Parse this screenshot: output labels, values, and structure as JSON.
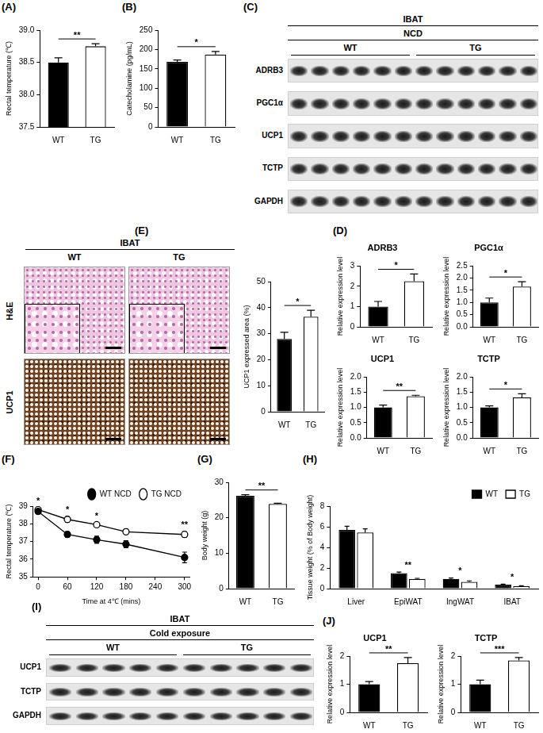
{
  "chart_data": [
    {
      "panel_label": "(A)",
      "type": "bar",
      "categories": [
        "WT",
        "TG"
      ],
      "values": [
        38.5,
        38.75
      ],
      "errors": [
        0.07,
        0.04
      ],
      "colors": [
        "#000000",
        "#ffffff"
      ],
      "y_label": "Rectal temperature (℃)",
      "ylim": [
        37.5,
        39.0
      ],
      "yticks": [
        37.5,
        {
          "value": 38,
          "label": "38.0"
        },
        38.5,
        {
          "value": 39,
          "label": "39.0"
        }
      ],
      "significance": "**",
      "grid": false
    },
    {
      "panel_label": "(B)",
      "type": "bar",
      "categories": [
        "WT",
        "TG"
      ],
      "values": [
        168,
        187
      ],
      "errors": [
        5,
        8
      ],
      "colors": [
        "#000000",
        "#ffffff"
      ],
      "y_label": "Catecholamine (pg/mL)",
      "ylim": [
        0,
        250
      ],
      "yticks": [
        0,
        50,
        100,
        150,
        200,
        250
      ],
      "significance": "*",
      "grid": false
    },
    {
      "panel_label": "(D)",
      "type": "bar",
      "title": "ADRB3",
      "categories": [
        "WT",
        "TG"
      ],
      "values": [
        1.0,
        2.25
      ],
      "errors": [
        0.25,
        0.35
      ],
      "colors": [
        "#000000",
        "#ffffff"
      ],
      "y_label": "Relative expression level",
      "ylim": [
        0,
        3
      ],
      "yticks": [
        0,
        1,
        2,
        3
      ],
      "significance": "*",
      "grid": false
    },
    {
      "type": "bar",
      "title": "PGC1α",
      "categories": [
        "WT",
        "TG"
      ],
      "values": [
        1.0,
        1.65
      ],
      "errors": [
        0.18,
        0.2
      ],
      "colors": [
        "#000000",
        "#ffffff"
      ],
      "y_label": "Relative expression level",
      "ylim": [
        0,
        2.5
      ],
      "yticks": [
        {
          "value": 0,
          "label": "0.0"
        },
        0.5,
        {
          "value": 1,
          "label": "1.0"
        },
        1.5,
        {
          "value": 2,
          "label": "2.0"
        },
        2.5
      ],
      "significance": "*",
      "grid": false
    },
    {
      "type": "bar",
      "title": "UCP1",
      "categories": [
        "WT",
        "TG"
      ],
      "values": [
        1.0,
        1.37
      ],
      "errors": [
        0.08,
        0.03
      ],
      "colors": [
        "#000000",
        "#ffffff"
      ],
      "y_label": "Relative expression level",
      "ylim": [
        0,
        2.0
      ],
      "yticks": [
        {
          "value": 0,
          "label": "0.0"
        },
        0.5,
        {
          "value": 1,
          "label": "1.0"
        },
        1.5,
        {
          "value": 2,
          "label": "2.0"
        }
      ],
      "significance": "**",
      "grid": false
    },
    {
      "type": "bar",
      "title": "TCTP",
      "categories": [
        "WT",
        "TG"
      ],
      "values": [
        1.0,
        1.33
      ],
      "errors": [
        0.05,
        0.12
      ],
      "colors": [
        "#000000",
        "#ffffff"
      ],
      "y_label": "Relative expression level",
      "ylim": [
        0,
        2.0
      ],
      "yticks": [
        {
          "value": 0,
          "label": "0.0"
        },
        0.5,
        {
          "value": 1,
          "label": "1.0"
        },
        1.5,
        {
          "value": 2,
          "label": "2.0"
        }
      ],
      "significance": "*",
      "grid": false
    },
    {
      "type": "bar",
      "categories": [
        "WT",
        "TG"
      ],
      "values": [
        28,
        36.5
      ],
      "errors": [
        2.5,
        2.5
      ],
      "colors": [
        "#000000",
        "#ffffff"
      ],
      "y_label": "UCP1 expressed area (%)",
      "ylim": [
        0,
        50
      ],
      "yticks": [
        0,
        10,
        20,
        30,
        40,
        50
      ],
      "significance": "*",
      "grid": false
    },
    {
      "panel_label": "(F)",
      "type": "line",
      "x": [
        0,
        60,
        120,
        180,
        300
      ],
      "series": [
        {
          "name": "WT NCD",
          "color": "#000000",
          "marker": "filled_circle",
          "values": [
            38.7,
            37.4,
            37.1,
            36.85,
            36.1
          ],
          "errors": [
            0.1,
            0.15,
            0.2,
            0.2,
            0.3
          ]
        },
        {
          "name": "TG NCD",
          "color": "#000000",
          "marker": "open_circle",
          "values": [
            38.8,
            38.25,
            37.95,
            37.55,
            37.4
          ],
          "errors": [
            0.1,
            0.15,
            0.1,
            0.15,
            0.15
          ]
        }
      ],
      "x_label": "Time at 4℃ (mins)",
      "y_label": "Rectal temperature (℃)",
      "xlim": [
        -10,
        310
      ],
      "xticks": [
        0,
        60,
        120,
        180,
        240,
        300
      ],
      "ylim": [
        35,
        39
      ],
      "yticks": [
        35,
        36,
        37,
        38,
        39
      ],
      "annotations": [
        "*",
        "*",
        "*",
        null,
        "**"
      ],
      "legend": "top-right",
      "grid": false
    },
    {
      "panel_label": "(G)",
      "type": "bar",
      "categories": [
        "WT",
        "TG"
      ],
      "values": [
        26.2,
        23.9
      ],
      "errors": [
        0.3,
        0.2
      ],
      "colors": [
        "#000000",
        "#ffffff"
      ],
      "y_label": "Body weight (g)",
      "ylim": [
        0,
        30
      ],
      "yticks": [
        0,
        10,
        20,
        30
      ],
      "significance": "**",
      "grid": false
    },
    {
      "panel_label": "(H)",
      "type": "bar",
      "categories": [
        "Liver",
        "EpiWAT",
        "IngWAT",
        "IBAT"
      ],
      "series": [
        {
          "name": "WT",
          "color": "#000000",
          "values": [
            5.7,
            1.5,
            0.95,
            0.38
          ],
          "errors": [
            0.35,
            0.1,
            0.08,
            0.05
          ]
        },
        {
          "name": "TG",
          "color": "#ffffff",
          "values": [
            5.45,
            0.95,
            0.65,
            0.25
          ],
          "errors": [
            0.35,
            0.05,
            0.1,
            0.03
          ]
        }
      ],
      "y_label": "Tissue weight (% of Body weight)",
      "ylim": [
        0,
        8
      ],
      "yticks": [
        0,
        2,
        4,
        6,
        8
      ],
      "annotations": [
        null,
        "**",
        "*",
        "*"
      ],
      "legend": "top-right",
      "grid": false
    },
    {
      "panel_label": "(J)",
      "type": "bar",
      "title": "UCP1",
      "categories": [
        "WT",
        "TG"
      ],
      "values": [
        1.0,
        1.75
      ],
      "errors": [
        0.1,
        0.2
      ],
      "colors": [
        "#000000",
        "#ffffff"
      ],
      "y_label": "Relative expression level",
      "ylim": [
        0,
        2
      ],
      "yticks": [
        0,
        1,
        2
      ],
      "significance": "**",
      "grid": false
    },
    {
      "type": "bar",
      "title": "TCTP",
      "categories": [
        "WT",
        "TG"
      ],
      "values": [
        1.0,
        1.85
      ],
      "errors": [
        0.15,
        0.1
      ],
      "colors": [
        "#000000",
        "#ffffff"
      ],
      "y_label": "Relative expression level",
      "ylim": [
        0,
        2
      ],
      "yticks": [
        0,
        1,
        2
      ],
      "significance": "***",
      "grid": false
    }
  ],
  "blots": [
    {
      "panel_label": "(C)",
      "tissue": "IBAT",
      "condition": "NCD",
      "groups": [
        "WT",
        "TG"
      ],
      "lanes_per_group": 6,
      "rows": [
        "ADRB3",
        "PGC1α",
        "UCP1",
        "TCTP",
        "GAPDH"
      ]
    },
    {
      "panel_label": "(I)",
      "tissue": "IBAT",
      "condition": "Cold exposure",
      "groups": [
        "WT",
        "TG"
      ],
      "lanes_per_group": 5,
      "rows": [
        "UCP1",
        "TCTP",
        "GAPDH"
      ]
    }
  ],
  "histology": {
    "panel_label": "(E)",
    "tissue": "IBAT",
    "groups": [
      "WT",
      "TG"
    ],
    "rows": [
      "H&E",
      "UCP1"
    ]
  }
}
